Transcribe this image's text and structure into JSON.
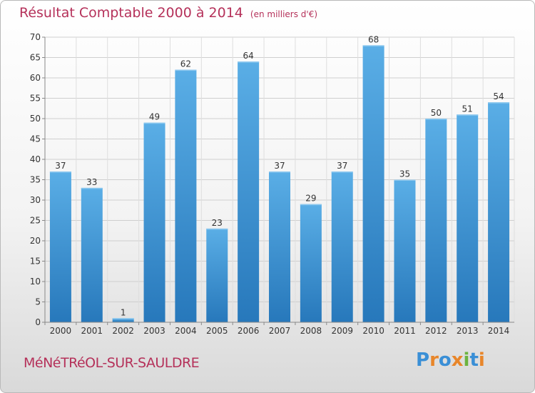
{
  "header": {
    "title": "Résultat Comptable 2000 à 2014",
    "unit": "(en milliers d'€)"
  },
  "footer": {
    "city": "MéNéTRéOL-SUR-SAULDRE",
    "logo": "Proxiti",
    "logo_letters": [
      {
        "ch": "P",
        "color": "#3a8fd6"
      },
      {
        "ch": "r",
        "color": "#e8862a"
      },
      {
        "ch": "o",
        "color": "#3a8fd6"
      },
      {
        "ch": "x",
        "color": "#e8862a"
      },
      {
        "ch": "i",
        "color": "#6cb33f"
      },
      {
        "ch": "t",
        "color": "#3a8fd6"
      },
      {
        "ch": "i",
        "color": "#e8862a"
      }
    ]
  },
  "colors": {
    "title": "#b5315a",
    "bar_light": "#5aaee6",
    "bar_dark": "#2879bd",
    "grid": "#cfcfcf",
    "axis_text": "#333333"
  },
  "chart_data": {
    "type": "bar",
    "title": "Résultat Comptable 2000 à 2014",
    "subtitle": "(en milliers d'€)",
    "xlabel": "",
    "ylabel": "",
    "categories": [
      "2000",
      "2001",
      "2002",
      "2003",
      "2004",
      "2005",
      "2006",
      "2007",
      "2008",
      "2009",
      "2010",
      "2011",
      "2012",
      "2013",
      "2014"
    ],
    "values": [
      37,
      33,
      1,
      49,
      62,
      23,
      64,
      37,
      29,
      37,
      68,
      35,
      50,
      51,
      54
    ],
    "ylim": [
      0,
      70
    ],
    "yticks": [
      0,
      5,
      10,
      15,
      20,
      25,
      30,
      35,
      40,
      45,
      50,
      55,
      60,
      65,
      70
    ],
    "grid": true,
    "data_labels": true
  }
}
